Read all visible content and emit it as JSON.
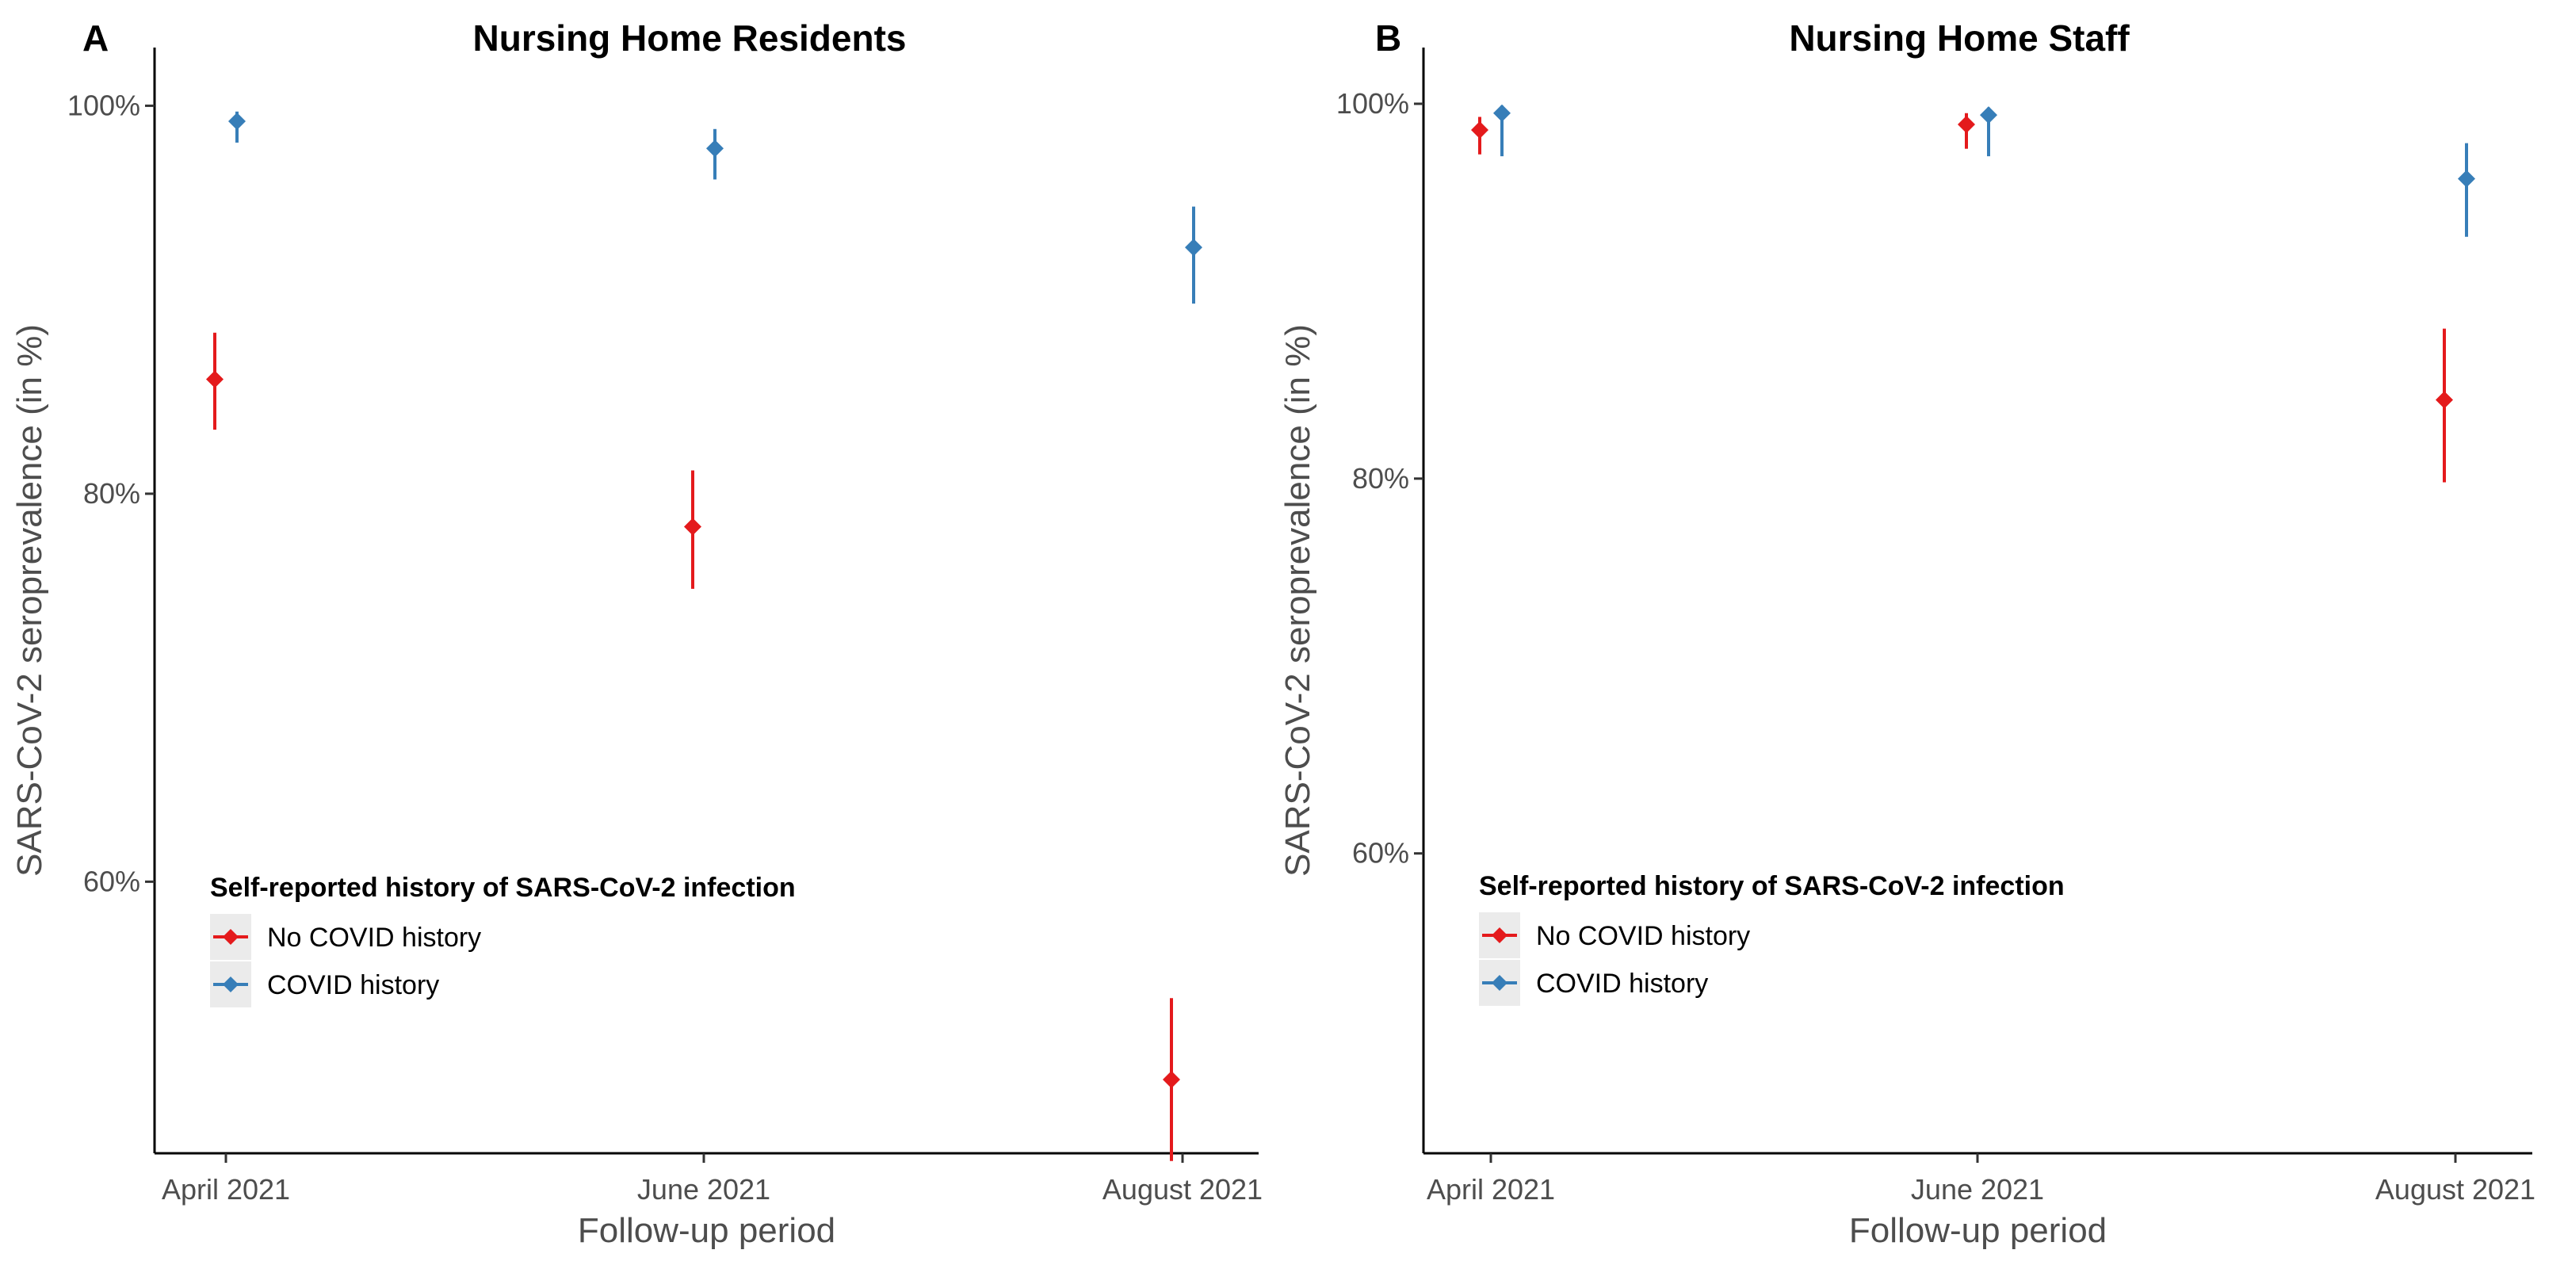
{
  "chart_data": [
    {
      "type": "scatter",
      "panel_tag": "A",
      "title": "Nursing Home Residents",
      "xlabel": "Follow-up period",
      "ylabel": "SARS-CoV-2 seroprevalence (in %)",
      "categories": [
        "April 2021",
        "June 2021",
        "August 2021"
      ],
      "ylim": [
        46,
        103
      ],
      "y_ticks": [
        60,
        80,
        100
      ],
      "y_tick_labels": [
        "60%",
        "80%",
        "100%"
      ],
      "legend": {
        "title": "Self-reported history of SARS-CoV-2 infection",
        "placement": "bottom-left"
      },
      "series": [
        {
          "name": "No COVID history",
          "color": "#e41a1c",
          "values": [
            85.9,
            78.3,
            49.8
          ],
          "ci_low": [
            83.3,
            75.1,
            45.6
          ],
          "ci_high": [
            88.3,
            81.2,
            54.0
          ]
        },
        {
          "name": "COVID history",
          "color": "#377eb8",
          "values": [
            99.2,
            97.8,
            92.7
          ],
          "ci_low": [
            98.1,
            96.2,
            89.8
          ],
          "ci_high": [
            99.7,
            98.8,
            94.8
          ]
        }
      ]
    },
    {
      "type": "scatter",
      "panel_tag": "B",
      "title": "Nursing Home Staff",
      "xlabel": "Follow-up period",
      "ylabel": "SARS-CoV-2 seroprevalence (in %)",
      "categories": [
        "April 2021",
        "June 2021",
        "August 2021"
      ],
      "ylim": [
        44,
        103
      ],
      "y_ticks": [
        60,
        80,
        100
      ],
      "y_tick_labels": [
        "60%",
        "80%",
        "100%"
      ],
      "legend": {
        "title": "Self-reported history of SARS-CoV-2 infection",
        "placement": "bottom-left"
      },
      "series": [
        {
          "name": "No COVID history",
          "color": "#e41a1c",
          "values": [
            98.6,
            98.9,
            84.2
          ],
          "ci_low": [
            97.3,
            97.6,
            79.8
          ],
          "ci_high": [
            99.3,
            99.5,
            88.0
          ]
        },
        {
          "name": "COVID history",
          "color": "#377eb8",
          "values": [
            99.5,
            99.4,
            96.0
          ],
          "ci_low": [
            97.2,
            97.2,
            92.9
          ],
          "ci_high": [
            99.9,
            99.8,
            97.9
          ]
        }
      ]
    }
  ]
}
